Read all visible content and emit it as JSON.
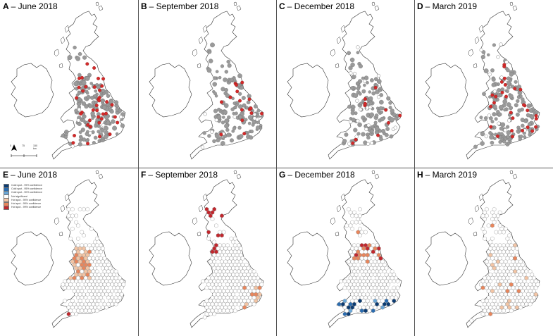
{
  "panels": [
    {
      "letter": "A",
      "label": "– June 2018",
      "kind": "points",
      "seed": 11,
      "nGrey": 175,
      "nRed": 38,
      "nWhite": 6
    },
    {
      "letter": "B",
      "label": "– September 2018",
      "kind": "points",
      "seed": 23,
      "nGrey": 145,
      "nRed": 16,
      "nWhite": 10
    },
    {
      "letter": "C",
      "label": "– December 2018",
      "kind": "points",
      "seed": 37,
      "nGrey": 135,
      "nRed": 10,
      "nWhite": 22
    },
    {
      "letter": "D",
      "label": "– March 2019",
      "kind": "points",
      "seed": 41,
      "nGrey": 165,
      "nRed": 28,
      "nWhite": 14
    },
    {
      "letter": "E",
      "label": "– June 2018",
      "kind": "hex",
      "seed": 51,
      "pattern": "west-hot"
    },
    {
      "letter": "F",
      "label": "– September 2018",
      "kind": "hex",
      "seed": 63,
      "pattern": "north-east-hot"
    },
    {
      "letter": "G",
      "label": "– December 2018",
      "kind": "hex",
      "seed": 77,
      "pattern": "north-hot-south-cold"
    },
    {
      "letter": "H",
      "label": "– March 2019",
      "kind": "hex",
      "seed": 89,
      "pattern": "sparse-warm"
    }
  ],
  "legend": {
    "items": [
      {
        "label": "Cold spot - 99% confidence",
        "color": "#0b3b72"
      },
      {
        "label": "Cold spot - 95% confidence",
        "color": "#2a6cb0"
      },
      {
        "label": "Cold spot - 90% confidence",
        "color": "#6aa6d6"
      },
      {
        "label": "Not significant",
        "color": "#ffffff"
      },
      {
        "label": "Hot spot - 90% confidence",
        "color": "#f3c5a5"
      },
      {
        "label": "Hot spot - 95% confidence",
        "color": "#e8865c"
      },
      {
        "label": "Hot spot - 99% confidence",
        "color": "#c1272d"
      }
    ]
  },
  "scale": {
    "labels": [
      "0",
      "75",
      "150 km"
    ]
  },
  "colors": {
    "land_stroke": "#333333",
    "grey_point": "#9a9a9a",
    "red_point": "#d42a2a",
    "hex_stroke": "#8a8a8a"
  }
}
